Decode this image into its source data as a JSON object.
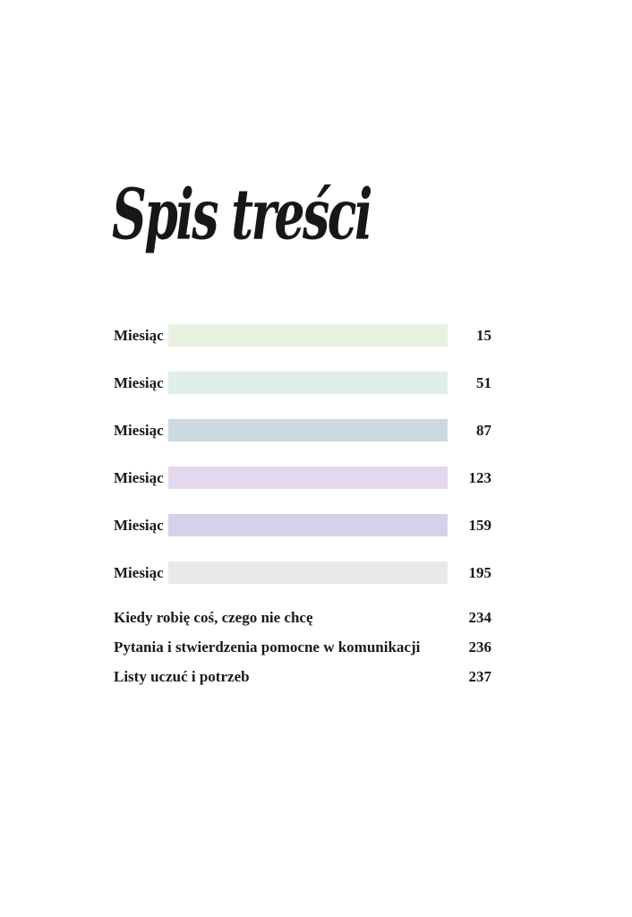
{
  "page": {
    "title": "Spis treści"
  },
  "toc": {
    "bar_entries": [
      {
        "label": "Miesiąc",
        "page": "15",
        "color": "#e7f1e0"
      },
      {
        "label": "Miesiąc",
        "page": "51",
        "color": "#dfeeea"
      },
      {
        "label": "Miesiąc",
        "page": "87",
        "color": "#ccd9e1"
      },
      {
        "label": "Miesiąc",
        "page": "123",
        "color": "#e3d8ec"
      },
      {
        "label": "Miesiąc",
        "page": "159",
        "color": "#d4d2e8"
      },
      {
        "label": "Miesiąc",
        "page": "195",
        "color": "#e9e9e9"
      }
    ],
    "text_entries": [
      {
        "label": "Kiedy robię coś, czego nie chcę",
        "page": "234"
      },
      {
        "label": "Pytania i stwierdzenia pomocne w komunikacji",
        "page": "236"
      },
      {
        "label": "Listy uczuć i potrzeb",
        "page": "237"
      }
    ]
  }
}
